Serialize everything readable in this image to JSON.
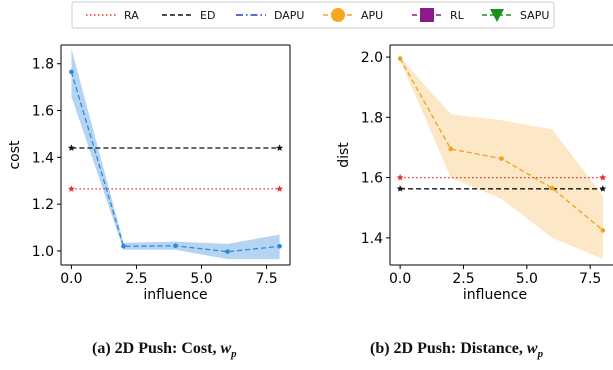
{
  "legend": {
    "entries": [
      {
        "label": "RA",
        "color": "#e8312f",
        "dash": "dotted",
        "marker": "none"
      },
      {
        "label": "ED",
        "color": "#111111",
        "dash": "dashed",
        "marker": "none"
      },
      {
        "label": "DAPU",
        "color": "#1f3fd6",
        "dash": "dashdot",
        "marker": "none"
      },
      {
        "label": "APU",
        "color": "#f5a623",
        "dash": "dashed",
        "marker": "circle"
      },
      {
        "label": "RL",
        "color": "#8b1a8b",
        "dash": "dashed",
        "marker": "square"
      },
      {
        "label": "SAPU",
        "color": "#1a8f1a",
        "dash": "dashed",
        "marker": "triangle-down"
      }
    ]
  },
  "captions": [
    {
      "prefix": "(a) 2D Push: Cost, ",
      "var": "w",
      "sub": "p"
    },
    {
      "prefix": "(b) 2D Push: Distance, ",
      "var": "w",
      "sub": "p"
    }
  ],
  "chart_data": [
    {
      "type": "line",
      "title": "",
      "xlabel": "influence",
      "ylabel": "cost",
      "xlim": [
        -0.4,
        8.4
      ],
      "ylim": [
        0.94,
        1.88
      ],
      "xticks": [
        0.0,
        2.5,
        5.0,
        7.5
      ],
      "xtick_labels": [
        "0.0",
        "2.5",
        "5.0",
        "7.5"
      ],
      "yticks": [
        1.0,
        1.2,
        1.4,
        1.6,
        1.8
      ],
      "ytick_labels": [
        "1.0",
        "1.2",
        "1.4",
        "1.6",
        "1.8"
      ],
      "series": [
        {
          "key": "RA",
          "x": [
            0,
            8
          ],
          "y": [
            1.265,
            1.265
          ],
          "color": "#e8312f",
          "dash": "dotted",
          "marker": "star"
        },
        {
          "key": "ED",
          "x": [
            0,
            8
          ],
          "y": [
            1.44,
            1.44
          ],
          "color": "#111111",
          "dash": "dashed",
          "marker": "star"
        },
        {
          "key": "DAPU",
          "x": [
            0,
            2,
            4,
            6,
            8
          ],
          "y": [
            1.765,
            1.02,
            1.022,
            0.997,
            1.02
          ],
          "band_low": [
            1.66,
            1.005,
            1.005,
            0.965,
            0.965
          ],
          "band_high": [
            1.865,
            1.035,
            1.04,
            1.03,
            1.07
          ],
          "color": "#2b8ad6",
          "band_color": "#a8cdf2",
          "dash": "dashed",
          "marker": "circle"
        }
      ]
    },
    {
      "type": "line",
      "title": "",
      "xlabel": "influence",
      "ylabel": "dist",
      "xlim": [
        -0.4,
        8.4
      ],
      "ylim": [
        1.31,
        2.04
      ],
      "xticks": [
        0.0,
        2.5,
        5.0,
        7.5
      ],
      "xtick_labels": [
        "0.0",
        "2.5",
        "5.0",
        "7.5"
      ],
      "yticks": [
        1.4,
        1.6,
        1.8,
        2.0
      ],
      "ytick_labels": [
        "1.4",
        "1.6",
        "1.8",
        "2.0"
      ],
      "series": [
        {
          "key": "RA",
          "x": [
            0,
            8
          ],
          "y": [
            1.6,
            1.6
          ],
          "color": "#e8312f",
          "dash": "dotted",
          "marker": "star"
        },
        {
          "key": "ED",
          "x": [
            0,
            8
          ],
          "y": [
            1.563,
            1.563
          ],
          "color": "#111111",
          "dash": "dashed",
          "marker": "star"
        },
        {
          "key": "APU",
          "x": [
            0,
            2,
            4,
            6,
            8
          ],
          "y": [
            1.995,
            1.695,
            1.663,
            1.565,
            1.425
          ],
          "band_low": [
            1.99,
            1.6,
            1.53,
            1.4,
            1.33
          ],
          "band_high": [
            2.0,
            1.81,
            1.79,
            1.76,
            1.54
          ],
          "color": "#f0a21a",
          "band_color": "#fbe3bd",
          "dash": "dashed",
          "marker": "circle"
        }
      ]
    }
  ]
}
